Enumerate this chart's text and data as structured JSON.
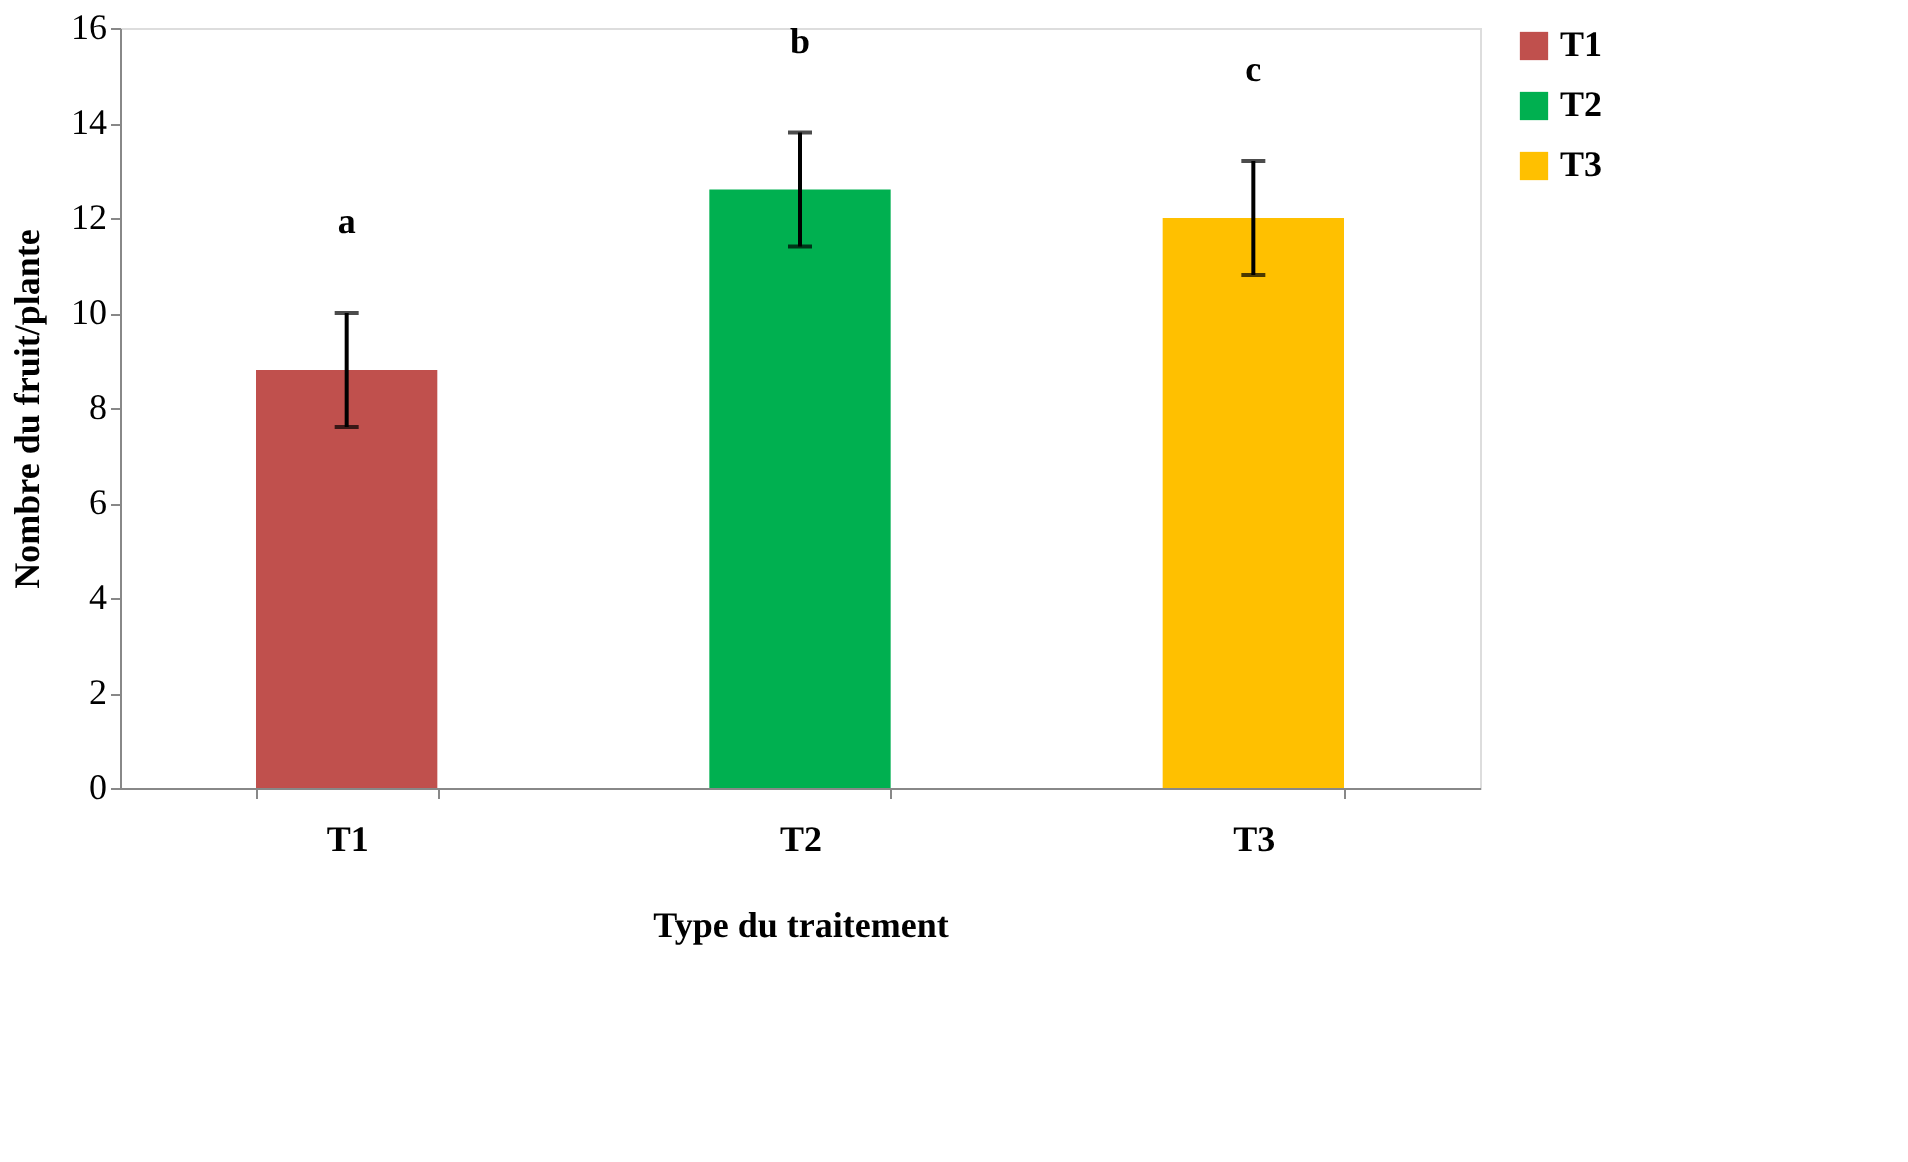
{
  "chart_data": {
    "type": "bar",
    "xlabel": "Type du traitement",
    "ylabel": "Nombre du fruit/plante",
    "categories": [
      "T1",
      "T2",
      "T3"
    ],
    "series": [
      {
        "name": "T1",
        "color": "#c0504d",
        "values": [
          8.8,
          null,
          null
        ],
        "errors": [
          1.2,
          null,
          null
        ]
      },
      {
        "name": "T2",
        "color": "#00b050",
        "values": [
          null,
          12.6,
          null
        ],
        "errors": [
          null,
          1.2,
          null
        ]
      },
      {
        "name": "T3",
        "color": "#ffc000",
        "values": [
          null,
          null,
          12.0
        ],
        "errors": [
          null,
          null,
          1.2
        ]
      }
    ],
    "ylim": [
      0,
      16
    ],
    "yticks": [
      0,
      2,
      4,
      6,
      8,
      10,
      12,
      14,
      16
    ],
    "grid": false,
    "legend": "right",
    "annotations": [
      "a",
      "b",
      "c"
    ]
  }
}
